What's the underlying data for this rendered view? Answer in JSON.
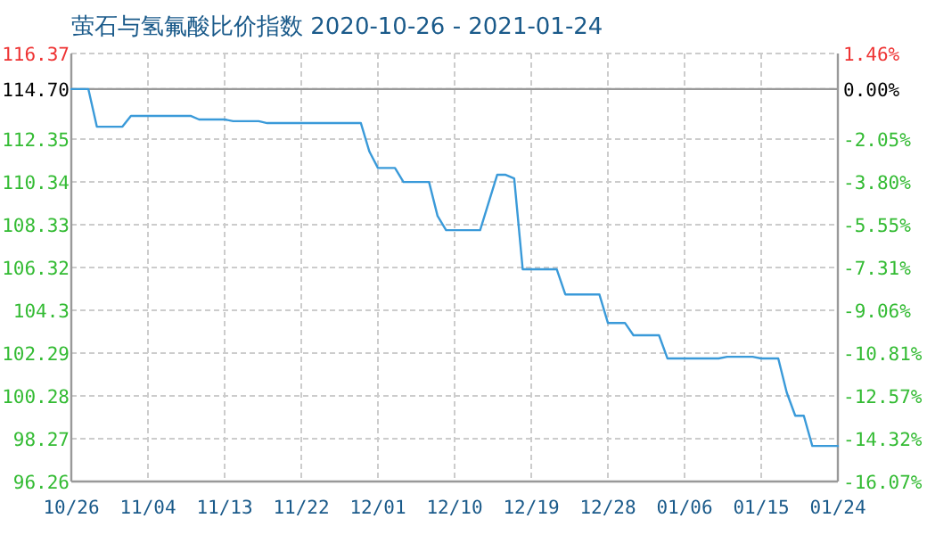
{
  "chart_data": {
    "type": "line",
    "title": "萤石与氢氟酸比价指数 2020-10-26 - 2021-01-24",
    "xlim": [
      "2020-10-26",
      "2021-01-24"
    ],
    "xticks": [
      {
        "value": "2020-10-26",
        "label": "10/26"
      },
      {
        "value": "2020-11-04",
        "label": "11/04"
      },
      {
        "value": "2020-11-13",
        "label": "11/13"
      },
      {
        "value": "2020-11-22",
        "label": "11/22"
      },
      {
        "value": "2020-12-01",
        "label": "12/01"
      },
      {
        "value": "2020-12-10",
        "label": "12/10"
      },
      {
        "value": "2020-12-19",
        "label": "12/19"
      },
      {
        "value": "2020-12-28",
        "label": "12/28"
      },
      {
        "value": "2021-01-06",
        "label": "01/06"
      },
      {
        "value": "2021-01-15",
        "label": "01/15"
      },
      {
        "value": "2021-01-24",
        "label": "01/24"
      }
    ],
    "ylim": [
      96.26,
      116.37
    ],
    "yticks": [
      116.37,
      {
        "value": 114.7,
        "label": "114.70"
      },
      112.35,
      110.34,
      108.33,
      106.32,
      104.3,
      102.29,
      100.28,
      98.27,
      96.26
    ],
    "y2lim": [
      -16.07,
      1.46
    ],
    "y2ticks": [
      {
        "value": 1.46,
        "label": "1.46%"
      },
      {
        "value": 0,
        "label": "0.00%"
      },
      {
        "value": -2.05,
        "label": "-2.05%"
      },
      {
        "value": -3.8,
        "label": "-3.80%"
      },
      {
        "value": -5.55,
        "label": "-5.55%"
      },
      {
        "value": -7.31,
        "label": "-7.31%"
      },
      {
        "value": -9.06,
        "label": "-9.06%"
      },
      {
        "value": -10.81,
        "label": "-10.81%"
      },
      {
        "value": -12.57,
        "label": "-12.57%"
      },
      {
        "value": -14.32,
        "label": "-14.32%"
      },
      {
        "value": -16.07,
        "label": "-16.07%"
      }
    ],
    "grid": true,
    "ref_lines": [
      {
        "axis": "y",
        "value": 114.7,
        "color": "#999999",
        "line_style": "solid"
      }
    ],
    "series": [
      {
        "color": "#3a9ad9",
        "x": [
          "2020-10-26",
          "2020-10-28",
          "2020-10-29",
          "2020-11-01",
          "2020-11-02",
          "2020-11-09",
          "2020-11-10",
          "2020-11-13",
          "2020-11-14",
          "2020-11-17",
          "2020-11-18",
          "2020-11-29",
          "2020-11-30",
          "2020-12-01",
          "2020-12-03",
          "2020-12-04",
          "2020-12-07",
          "2020-12-08",
          "2020-12-09",
          "2020-12-13",
          "2020-12-15",
          "2020-12-16",
          "2020-12-17",
          "2020-12-18",
          "2020-12-22",
          "2020-12-23",
          "2020-12-27",
          "2020-12-28",
          "2020-12-30",
          "2020-12-31",
          "2021-01-03",
          "2021-01-04",
          "2021-01-10",
          "2021-01-11",
          "2021-01-14",
          "2021-01-15",
          "2021-01-17",
          "2021-01-18",
          "2021-01-19",
          "2021-01-20",
          "2021-01-21",
          "2021-01-24"
        ],
        "values": [
          114.7,
          114.7,
          112.93,
          112.93,
          113.44,
          113.44,
          113.27,
          113.27,
          113.19,
          113.19,
          113.1,
          113.1,
          111.76,
          110.99,
          110.99,
          110.33,
          110.33,
          108.74,
          108.07,
          108.07,
          110.67,
          110.67,
          110.5,
          106.23,
          106.23,
          105.05,
          105.05,
          103.71,
          103.71,
          103.13,
          103.13,
          102.04,
          102.04,
          102.12,
          102.12,
          102.04,
          102.04,
          100.44,
          99.35,
          99.35,
          97.93,
          97.93
        ]
      }
    ]
  }
}
